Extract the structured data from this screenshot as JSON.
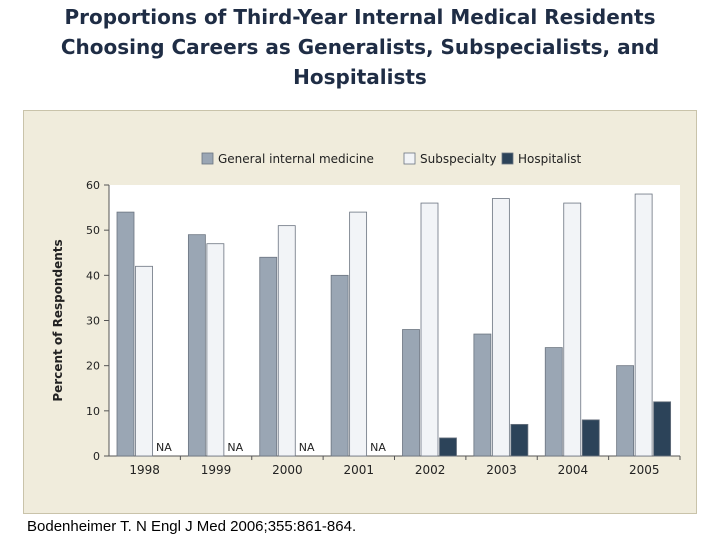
{
  "slide": {
    "title_lines": [
      "Proportions of Third-Year Internal Medical Residents",
      "Choosing Careers as Generalists, Subspecialists, and",
      "Hospitalists"
    ],
    "citation": "Bodenheimer T. N Engl J Med 2006;355:861-864."
  },
  "colors": {
    "general": "#9aa6b4",
    "subspecialty": "#f2f4f7",
    "hospitalist": "#2c4359",
    "panel_bg": "#f0ecdc",
    "plot_bg": "#ffffff"
  },
  "chart_data": {
    "type": "bar",
    "categories": [
      "1998",
      "1999",
      "2000",
      "2001",
      "2002",
      "2003",
      "2004",
      "2005"
    ],
    "series": [
      {
        "name": "General internal medicine",
        "values": [
          54,
          49,
          44,
          40,
          28,
          27,
          24,
          20
        ]
      },
      {
        "name": "Subspecialty",
        "values": [
          42,
          47,
          51,
          54,
          56,
          57,
          56,
          58
        ]
      },
      {
        "name": "Hospitalist",
        "values": [
          null,
          null,
          null,
          null,
          4,
          7,
          8,
          12
        ]
      }
    ],
    "missing_label": "NA",
    "ylabel": "Percent of Respondents",
    "xlabel": "",
    "ylim": [
      0,
      60
    ],
    "yticks": [
      0,
      10,
      20,
      30,
      40,
      50,
      60
    ],
    "legend": "top",
    "grid": false
  }
}
